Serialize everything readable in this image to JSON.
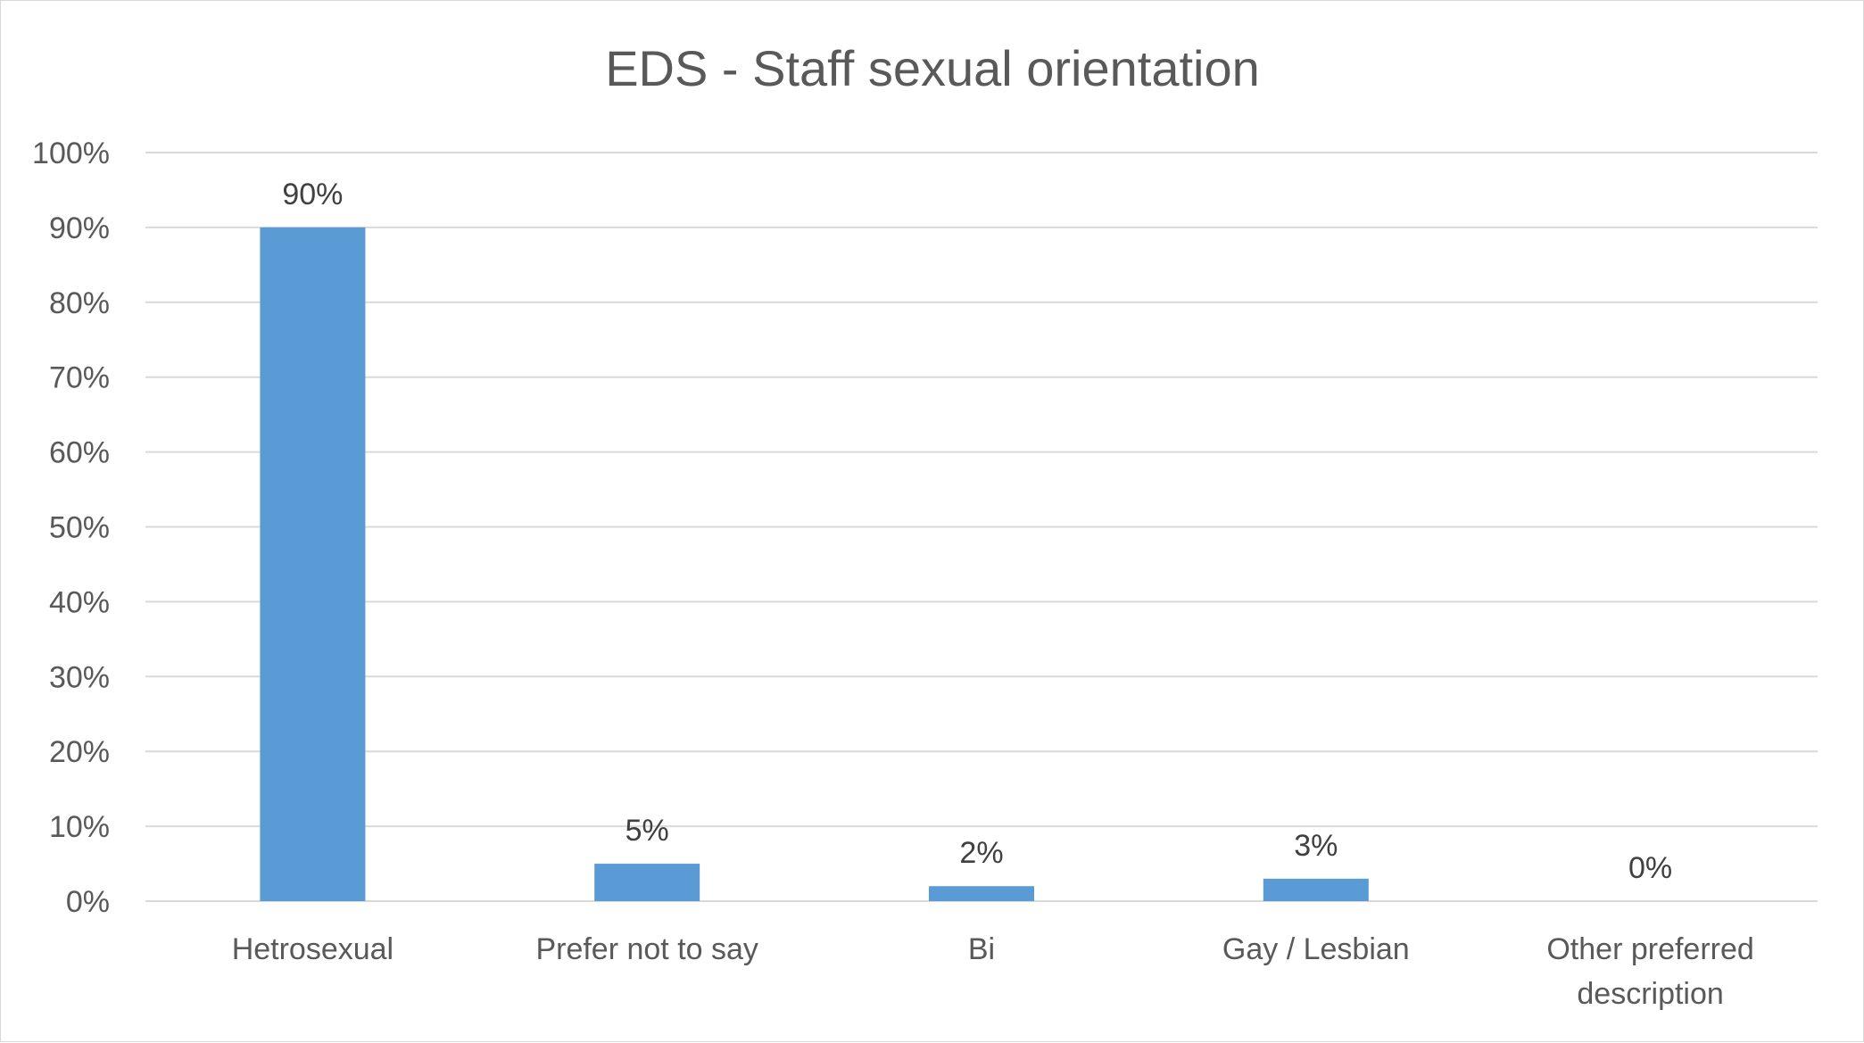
{
  "chart_data": {
    "type": "bar",
    "title": "EDS - Staff sexual orientation",
    "categories": [
      [
        "Hetrosexual"
      ],
      [
        "Prefer not to say"
      ],
      [
        "Bi"
      ],
      [
        "Gay / Lesbian"
      ],
      [
        "Other preferred",
        "description"
      ]
    ],
    "values": [
      90,
      5,
      2,
      3,
      0
    ],
    "data_labels": [
      "90%",
      "5%",
      "2%",
      "3%",
      "0%"
    ],
    "ylim": [
      0,
      100
    ],
    "yticks": [
      0,
      10,
      20,
      30,
      40,
      50,
      60,
      70,
      80,
      90,
      100
    ],
    "ytick_labels": [
      "0%",
      "10%",
      "20%",
      "30%",
      "40%",
      "50%",
      "60%",
      "70%",
      "80%",
      "90%",
      "100%"
    ],
    "xlabel": "",
    "ylabel": "",
    "grid": true,
    "legend": "none",
    "bar_color": "#5b9bd5"
  }
}
